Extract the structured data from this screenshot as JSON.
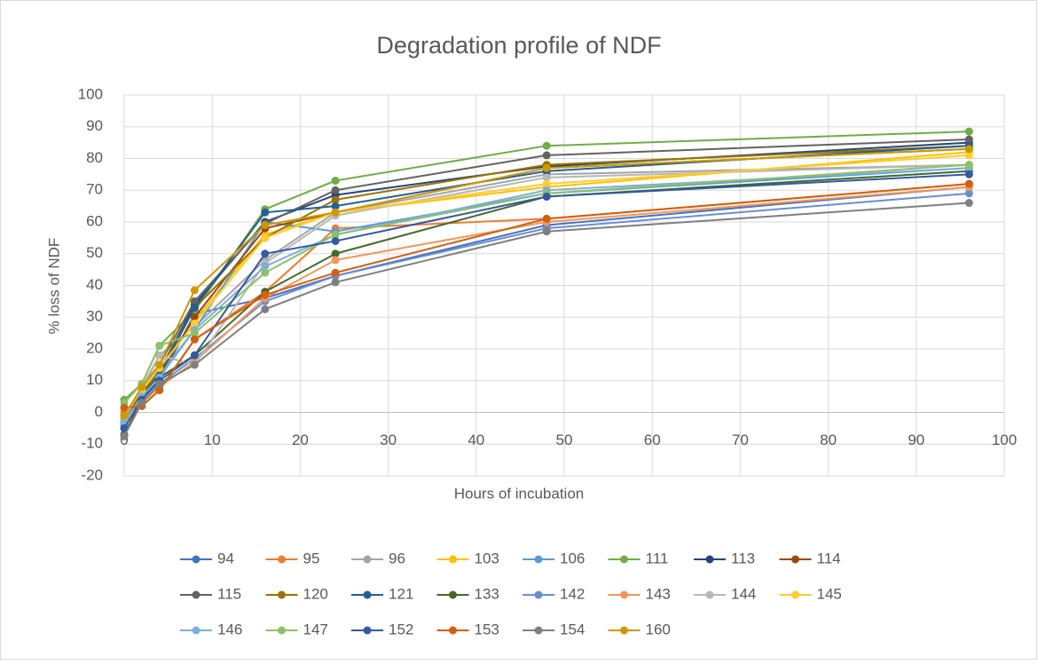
{
  "chart_data": {
    "type": "line",
    "title": "Degradation profile of NDF",
    "x_label": "Hours of incubation",
    "y_label": "% loss of NDF",
    "x": [
      0,
      2,
      4,
      8,
      16,
      24,
      48,
      96
    ],
    "xlim": [
      0,
      100
    ],
    "xticks": [
      0,
      10,
      20,
      30,
      40,
      50,
      60,
      70,
      80,
      90,
      100
    ],
    "ylim": [
      -20,
      100
    ],
    "yticks": [
      -20,
      -10,
      0,
      10,
      20,
      30,
      40,
      50,
      60,
      70,
      80,
      90,
      100
    ],
    "grid": true,
    "legend": "bottom",
    "series": [
      {
        "name": "94",
        "color": "#4472C4",
        "values": [
          -3,
          4,
          10,
          31,
          36,
          43,
          59,
          71
        ]
      },
      {
        "name": "95",
        "color": "#ED7D31",
        "values": [
          0,
          2,
          7,
          23,
          38,
          58,
          61,
          72
        ]
      },
      {
        "name": "96",
        "color": "#A5A5A5",
        "values": [
          -2,
          7,
          18,
          27,
          48,
          63,
          75,
          78
        ]
      },
      {
        "name": "103",
        "color": "#FFC000",
        "values": [
          -1,
          7,
          14,
          29,
          56,
          63,
          71,
          82
        ]
      },
      {
        "name": "106",
        "color": "#5B9BD5",
        "values": [
          -2,
          5,
          12,
          26,
          60,
          57,
          69,
          77
        ]
      },
      {
        "name": "111",
        "color": "#70AD47",
        "values": [
          4,
          9,
          21,
          32,
          64,
          73,
          84,
          88.5
        ]
      },
      {
        "name": "113",
        "color": "#264478",
        "values": [
          -3,
          6,
          13,
          34,
          60,
          68.5,
          77.5,
          85
        ]
      },
      {
        "name": "114",
        "color": "#9E480E",
        "values": [
          -4,
          5,
          12,
          30,
          58,
          63,
          77,
          83
        ]
      },
      {
        "name": "115",
        "color": "#636363",
        "values": [
          -5,
          8,
          15,
          35,
          59.5,
          70,
          81,
          86
        ]
      },
      {
        "name": "120",
        "color": "#997300",
        "values": [
          -3,
          6,
          13,
          33,
          55,
          67,
          78,
          84
        ]
      },
      {
        "name": "121",
        "color": "#255E91",
        "values": [
          -3,
          5,
          12,
          33,
          63,
          65,
          76,
          84
        ]
      },
      {
        "name": "133",
        "color": "#43682B",
        "values": [
          -7,
          4,
          11,
          18,
          38,
          50,
          68,
          76
        ]
      },
      {
        "name": "142",
        "color": "#698ED0",
        "values": [
          -4,
          3,
          9,
          17,
          35,
          43,
          58,
          69
        ]
      },
      {
        "name": "143",
        "color": "#F1975A",
        "values": [
          -3,
          3,
          8,
          16,
          36,
          48,
          60,
          71
        ]
      },
      {
        "name": "144",
        "color": "#B7B7B7",
        "values": [
          -2,
          8,
          18,
          15,
          47,
          62,
          74,
          78
        ]
      },
      {
        "name": "145",
        "color": "#FFCD33",
        "values": [
          -1,
          7,
          14,
          28,
          55,
          63,
          72,
          81
        ]
      },
      {
        "name": "146",
        "color": "#7CAFDD",
        "values": [
          -3,
          5,
          11,
          26,
          46,
          56,
          70,
          77
        ]
      },
      {
        "name": "147",
        "color": "#8CC168",
        "values": [
          3,
          9,
          21,
          25,
          44,
          56,
          69,
          78
        ]
      },
      {
        "name": "152",
        "color": "#335AA1",
        "values": [
          -5,
          4,
          10,
          18,
          50,
          54,
          68,
          75
        ]
      },
      {
        "name": "153",
        "color": "#D26012",
        "values": [
          1.5,
          2,
          7,
          23,
          37,
          44,
          61,
          72
        ]
      },
      {
        "name": "154",
        "color": "#7F7F7F",
        "values": [
          -7.5,
          3,
          9,
          15,
          32.5,
          41,
          57,
          66
        ]
      },
      {
        "name": "160",
        "color": "#CC9A00",
        "values": [
          -1,
          8,
          15,
          38.5,
          59,
          63,
          77,
          83
        ]
      }
    ]
  }
}
